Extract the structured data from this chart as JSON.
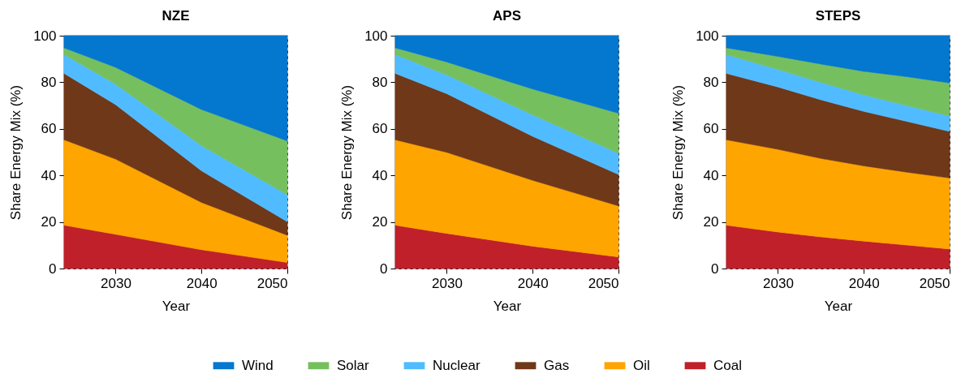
{
  "chart_data": [
    {
      "type": "area",
      "title": "NZE",
      "xlabel": "Year",
      "ylabel": "Share Energy Mix (%)",
      "stacked": true,
      "grid": true,
      "legend": "bottom",
      "x": [
        2024,
        2030,
        2040,
        2050
      ],
      "xlim": [
        2024,
        2050
      ],
      "xticks": [
        2030,
        2040,
        2050
      ],
      "ylim": [
        0,
        100
      ],
      "yticks": [
        0,
        20,
        40,
        60,
        80,
        100
      ],
      "series": [
        {
          "name": "Coal",
          "color": "#c0202a",
          "values": [
            18.6,
            14.7,
            8.1,
            2.6
          ]
        },
        {
          "name": "Oil",
          "color": "#ffa500",
          "values": [
            36.7,
            32.3,
            20.3,
            11.7
          ]
        },
        {
          "name": "Gas",
          "color": "#6f3819",
          "values": [
            28.5,
            23.4,
            13.6,
            5.8
          ]
        },
        {
          "name": "Nuclear",
          "color": "#50bcff",
          "values": [
            8.1,
            8.8,
            10.8,
            11.6
          ]
        },
        {
          "name": "Solar",
          "color": "#76bf5f",
          "values": [
            2.9,
            7.2,
            15.5,
            23.1
          ]
        },
        {
          "name": "Wind",
          "color": "#0477cf",
          "values": [
            5.2,
            13.6,
            31.7,
            45.2
          ]
        }
      ]
    },
    {
      "type": "area",
      "title": "APS",
      "xlabel": "Year",
      "ylabel": "Share Energy Mix (%)",
      "stacked": true,
      "grid": true,
      "legend": "bottom",
      "x": [
        2024,
        2030,
        2040,
        2050
      ],
      "xlim": [
        2024,
        2050
      ],
      "xticks": [
        2030,
        2040,
        2050
      ],
      "ylim": [
        0,
        100
      ],
      "yticks": [
        0,
        20,
        40,
        60,
        80,
        100
      ],
      "series": [
        {
          "name": "Coal",
          "color": "#c0202a",
          "values": [
            18.6,
            15.1,
            9.6,
            5.0
          ]
        },
        {
          "name": "Oil",
          "color": "#ffa500",
          "values": [
            36.7,
            34.8,
            28.3,
            21.9
          ]
        },
        {
          "name": "Gas",
          "color": "#6f3819",
          "values": [
            28.5,
            25.2,
            18.9,
            13.5
          ]
        },
        {
          "name": "Nuclear",
          "color": "#50bcff",
          "values": [
            8.1,
            8.1,
            9.2,
            9.1
          ]
        },
        {
          "name": "Solar",
          "color": "#76bf5f",
          "values": [
            2.9,
            5.5,
            11.1,
            17.2
          ]
        },
        {
          "name": "Wind",
          "color": "#0477cf",
          "values": [
            5.2,
            11.3,
            22.9,
            33.3
          ]
        }
      ]
    },
    {
      "type": "area",
      "title": "STEPS",
      "xlabel": "Year",
      "ylabel": "Share Energy Mix (%)",
      "stacked": true,
      "grid": true,
      "legend": "bottom",
      "x": [
        2024,
        2030,
        2035,
        2040,
        2045,
        2050
      ],
      "xlim": [
        2024,
        2050
      ],
      "xticks": [
        2030,
        2040,
        2050
      ],
      "ylim": [
        0,
        100
      ],
      "yticks": [
        0,
        20,
        40,
        60,
        80,
        100
      ],
      "series": [
        {
          "name": "Coal",
          "color": "#c0202a",
          "values": [
            18.6,
            15.7,
            13.6,
            11.8,
            10.1,
            8.4
          ]
        },
        {
          "name": "Oil",
          "color": "#ffa500",
          "values": [
            36.7,
            35.5,
            33.7,
            32.3,
            31.3,
            30.5
          ]
        },
        {
          "name": "Gas",
          "color": "#6f3819",
          "values": [
            28.5,
            26.8,
            25.2,
            23.4,
            21.8,
            20.0
          ]
        },
        {
          "name": "Nuclear",
          "color": "#50bcff",
          "values": [
            8.1,
            7.5,
            7.5,
            7.1,
            6.8,
            6.6
          ]
        },
        {
          "name": "Solar",
          "color": "#76bf5f",
          "values": [
            2.9,
            5.6,
            7.8,
            10.1,
            12.4,
            14.2
          ]
        },
        {
          "name": "Wind",
          "color": "#0477cf",
          "values": [
            5.2,
            8.9,
            12.2,
            15.3,
            17.6,
            20.3
          ]
        }
      ]
    }
  ]
}
